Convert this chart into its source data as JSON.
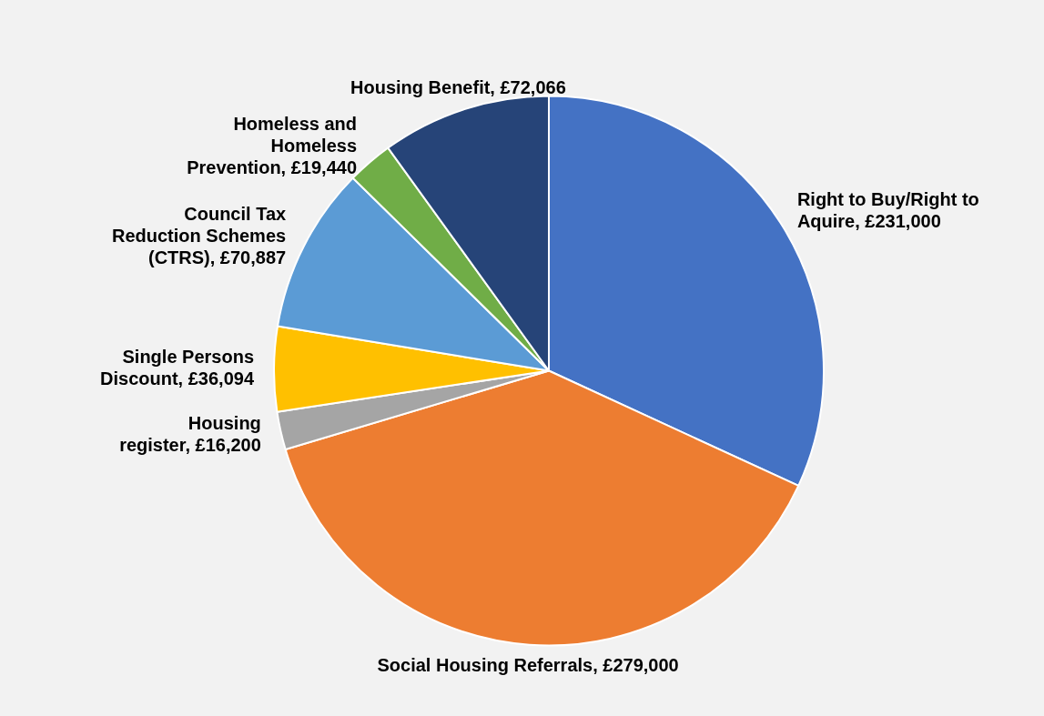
{
  "chart_data": {
    "type": "pie",
    "categories": [
      "Right to Buy/Right to Aquire",
      "Social Housing Referrals",
      "Housing register",
      "Single Persons Discount",
      "Council Tax Reduction Schemes (CTRS)",
      "Homeless and Homeless Prevention",
      "Housing Benefit"
    ],
    "values": [
      231000,
      279000,
      16200,
      36094,
      70887,
      19440,
      72066
    ],
    "value_labels": [
      "£231,000",
      "£279,000",
      "£16,200",
      "£36,094",
      "£70,887",
      "£19,440",
      "£72,066"
    ],
    "colors": [
      "#4472c4",
      "#ed7d31",
      "#a5a5a5",
      "#ffc000",
      "#5b9bd5",
      "#70ad47",
      "#264478"
    ],
    "legend": false
  }
}
